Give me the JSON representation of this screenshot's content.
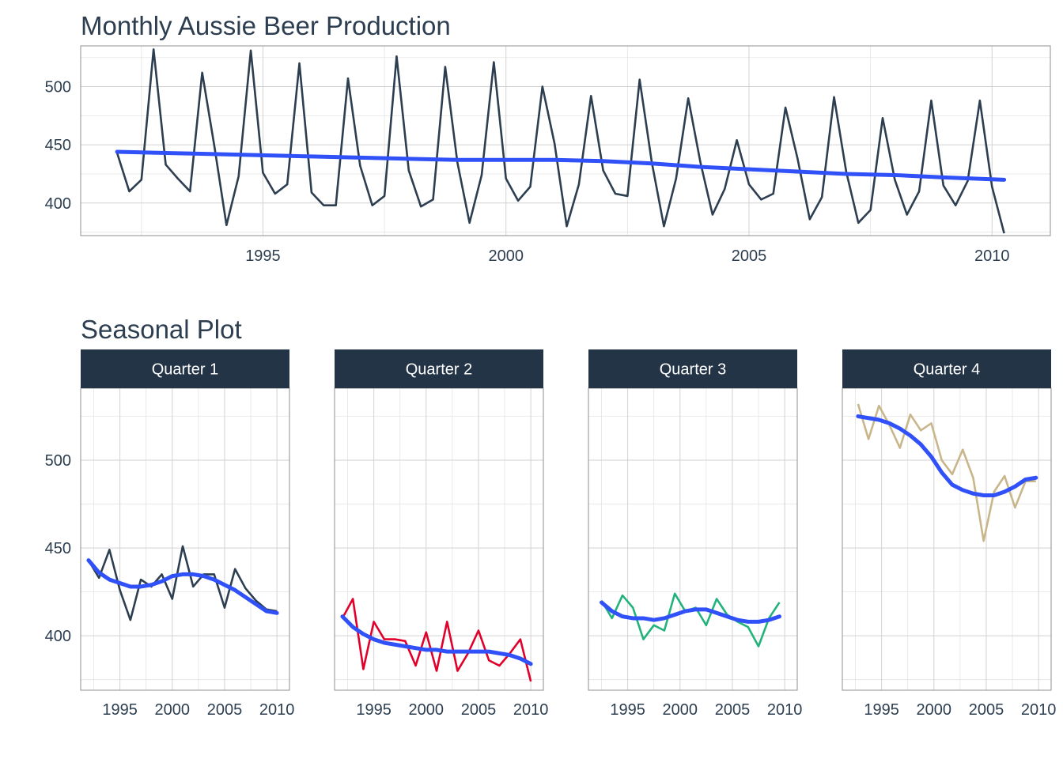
{
  "colors": {
    "main_line": "#2c3e50",
    "smooth": "#3050f8",
    "strip": "#233447",
    "q1": "#2c3e50",
    "q2": "#e0002a",
    "q3": "#22b37c",
    "q4": "#c8b68a"
  },
  "chart_data": [
    {
      "type": "line",
      "title": "Monthly Aussie Beer Production",
      "xlabel": "",
      "ylabel": "",
      "xlim": [
        1991.25,
        2011.2
      ],
      "ylim": [
        372,
        535
      ],
      "xticks": [
        1995,
        2000,
        2005,
        2010
      ],
      "yticks": [
        400,
        450,
        500
      ],
      "grid": true,
      "series": [
        {
          "x": [
            1992.0,
            1992.25,
            1992.5,
            1992.75,
            1993.0,
            1993.25,
            1993.5,
            1993.75,
            1994.0,
            1994.25,
            1994.5,
            1994.75,
            1995.0,
            1995.25,
            1995.5,
            1995.75,
            1996.0,
            1996.25,
            1996.5,
            1996.75,
            1997.0,
            1997.25,
            1997.5,
            1997.75,
            1998.0,
            1998.25,
            1998.5,
            1998.75,
            1999.0,
            1999.25,
            1999.5,
            1999.75,
            2000.0,
            2000.25,
            2000.5,
            2000.75,
            2001.0,
            2001.25,
            2001.5,
            2001.75,
            2002.0,
            2002.25,
            2002.5,
            2002.75,
            2003.0,
            2003.25,
            2003.5,
            2003.75,
            2004.0,
            2004.25,
            2004.5,
            2004.75,
            2005.0,
            2005.25,
            2005.5,
            2005.75,
            2006.0,
            2006.25,
            2006.5,
            2006.75,
            2007.0,
            2007.25,
            2007.5,
            2007.75,
            2008.0,
            2008.25,
            2008.5,
            2008.75,
            2009.0,
            2009.25,
            2009.5,
            2009.75,
            2010.0,
            2010.25
          ],
          "values": [
            443,
            410,
            420,
            532,
            433,
            421,
            410,
            512,
            449,
            381,
            423,
            531,
            426,
            408,
            416,
            520,
            409,
            398,
            398,
            507,
            432,
            398,
            406,
            526,
            428,
            397,
            403,
            517,
            435,
            383,
            424,
            521,
            421,
            402,
            414,
            500,
            451,
            380,
            416,
            492,
            428,
            408,
            406,
            506,
            435,
            380,
            421,
            490,
            435,
            390,
            412,
            454,
            416,
            403,
            408,
            482,
            438,
            386,
            405,
            491,
            427,
            383,
            394,
            473,
            420,
            390,
            410,
            488,
            415,
            398,
            419,
            488,
            414,
            374
          ]
        },
        {
          "name": "",
          "x": [
            1992.0,
            1993,
            1994,
            1995,
            1996,
            1997,
            1998,
            1999,
            2000,
            2001,
            2002,
            2003,
            2004,
            2005,
            2006,
            2007,
            2008,
            2009,
            2010.25
          ],
          "values": [
            444,
            443,
            442,
            441,
            440,
            439,
            438,
            437,
            437,
            437,
            436,
            434,
            431,
            429,
            427,
            425,
            424,
            422,
            420
          ]
        }
      ]
    },
    {
      "type": "line",
      "title": "Seasonal Plot",
      "facets": [
        {
          "label": "Quarter 1",
          "color_key": "q1",
          "x": [
            1992,
            1993,
            1994,
            1995,
            1996,
            1997,
            1998,
            1999,
            2000,
            2001,
            2002,
            2003,
            2004,
            2005,
            2006,
            2007,
            2008,
            2009,
            2010
          ],
          "values": [
            443,
            433,
            449,
            426,
            409,
            432,
            428,
            435,
            421,
            451,
            428,
            435,
            435,
            416,
            438,
            427,
            420,
            415,
            414
          ],
          "trend": [
            443,
            436,
            432,
            430,
            428,
            428,
            429,
            431,
            434,
            435,
            435,
            434,
            432,
            429,
            426,
            422,
            418,
            414,
            413
          ]
        },
        {
          "label": "Quarter 2",
          "color_key": "q2",
          "x": [
            1992,
            1993,
            1994,
            1995,
            1996,
            1997,
            1998,
            1999,
            2000,
            2001,
            2002,
            2003,
            2004,
            2005,
            2006,
            2007,
            2008,
            2009,
            2010
          ],
          "values": [
            410,
            421,
            381,
            408,
            398,
            398,
            397,
            383,
            402,
            380,
            408,
            380,
            390,
            403,
            386,
            383,
            390,
            398,
            374
          ],
          "trend": [
            411,
            405,
            401,
            398,
            396,
            395,
            394,
            393,
            392,
            392,
            391,
            391,
            391,
            391,
            391,
            390,
            389,
            387,
            384
          ]
        },
        {
          "label": "Quarter 3",
          "color_key": "q3",
          "x": [
            1992.5,
            1993.5,
            1994.5,
            1995.5,
            1996.5,
            1997.5,
            1998.5,
            1999.5,
            2000.5,
            2001.5,
            2002.5,
            2003.5,
            2004.5,
            2005.5,
            2006.5,
            2007.5,
            2008.5,
            2009.5
          ],
          "values": [
            420,
            410,
            423,
            416,
            398,
            406,
            403,
            424,
            414,
            416,
            406,
            421,
            412,
            408,
            405,
            394,
            410,
            419
          ],
          "trend": [
            419,
            414,
            411,
            410,
            410,
            409,
            410,
            412,
            414,
            415,
            415,
            413,
            411,
            409,
            408,
            408,
            409,
            411
          ]
        },
        {
          "label": "Quarter 4",
          "color_key": "q4",
          "x": [
            1992.75,
            1993.75,
            1994.75,
            1995.75,
            1996.75,
            1997.75,
            1998.75,
            1999.75,
            2000.75,
            2001.75,
            2002.75,
            2003.75,
            2004.75,
            2005.75,
            2006.75,
            2007.75,
            2008.75,
            2009.75
          ],
          "values": [
            532,
            512,
            531,
            520,
            507,
            526,
            517,
            521,
            500,
            492,
            506,
            490,
            454,
            482,
            491,
            473,
            488,
            488
          ],
          "trend": [
            525,
            524,
            523,
            521,
            518,
            514,
            509,
            502,
            493,
            486,
            483,
            481,
            480,
            480,
            482,
            485,
            489,
            490
          ]
        }
      ],
      "xlim": [
        1991.25,
        2011.2
      ],
      "ylim": [
        369,
        541
      ],
      "xticks": [
        1995,
        2000,
        2005,
        2010
      ],
      "yticks": [
        400,
        450,
        500
      ],
      "grid": true
    }
  ]
}
